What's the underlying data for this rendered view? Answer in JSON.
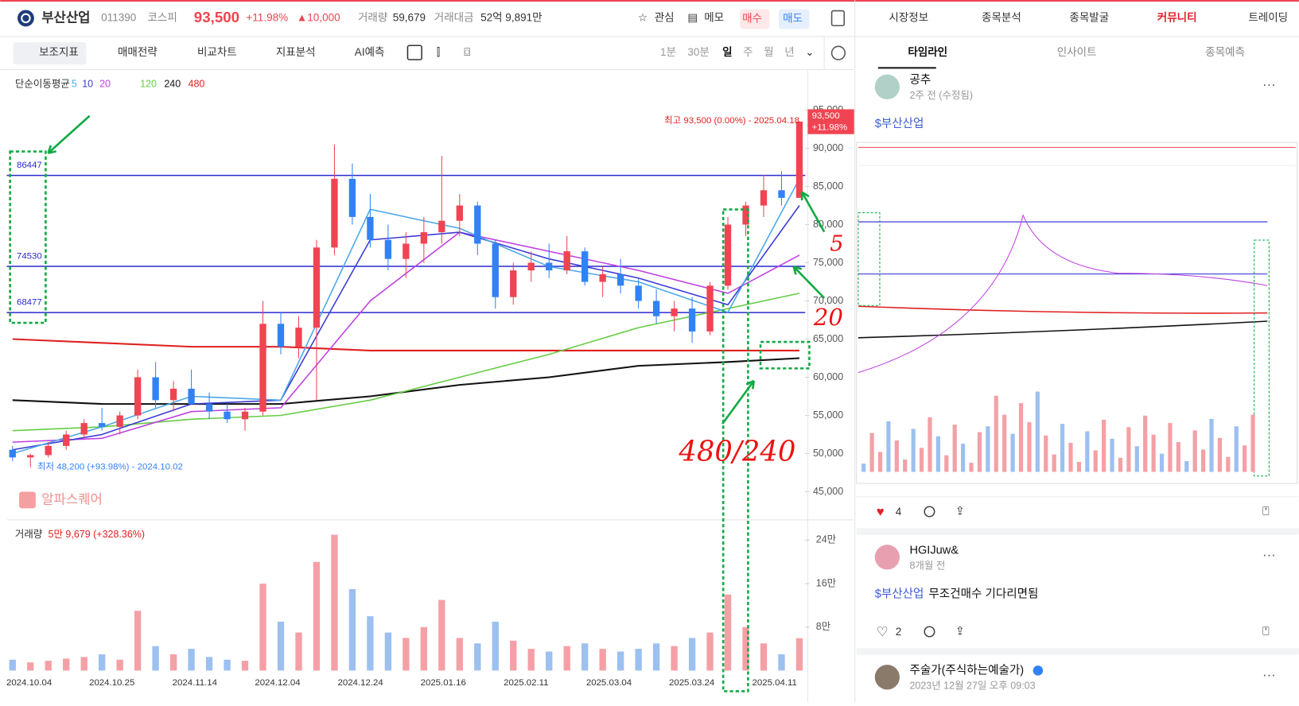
{
  "header": {
    "name": "부산산업",
    "code": "011390",
    "market": "코스피",
    "price": "93,500",
    "change_pct": "+11.98%",
    "change": "▲10,000",
    "volume_label": "거래량",
    "volume": "59,679",
    "amount_label": "거래대금",
    "amount": "52억 9,891만",
    "buttons": [
      "관심",
      "메모",
      "매수",
      "매도"
    ]
  },
  "nav": [
    "시장정보",
    "종목분석",
    "종목발굴",
    "커뮤니티",
    "트레이딩"
  ],
  "toolbar": [
    "보조지표",
    "매매전략",
    "비교차트",
    "지표분석",
    "AI예측"
  ],
  "periods": [
    "1분",
    "30분",
    "일",
    "주",
    "월",
    "년"
  ],
  "chart": {
    "type": "candlestick",
    "ma_label": "단순이동평균",
    "ohlc": [
      [
        50500,
        51000,
        49000,
        49500
      ],
      [
        49500,
        50000,
        48200,
        49800
      ],
      [
        49800,
        51500,
        49500,
        51000
      ],
      [
        51000,
        53000,
        50500,
        52500
      ],
      [
        52500,
        54500,
        52000,
        54000
      ],
      [
        54000,
        56000,
        53000,
        53500
      ],
      [
        53500,
        55500,
        52500,
        55000
      ],
      [
        55000,
        61000,
        54500,
        60000
      ],
      [
        60000,
        62000,
        56000,
        57000
      ],
      [
        57000,
        59500,
        55500,
        58500
      ],
      [
        58500,
        61000,
        57000,
        56500
      ],
      [
        56500,
        58000,
        54500,
        55500
      ],
      [
        55500,
        56500,
        54000,
        54500
      ],
      [
        54500,
        56000,
        53000,
        55500
      ],
      [
        55500,
        70000,
        55000,
        67000
      ],
      [
        67000,
        68500,
        63000,
        64000
      ],
      [
        64000,
        68000,
        62500,
        66500
      ],
      [
        66500,
        78000,
        57000,
        77000
      ],
      [
        77000,
        90500,
        76000,
        86000
      ],
      [
        86000,
        88000,
        80000,
        81000
      ],
      [
        81000,
        84000,
        77000,
        78000
      ],
      [
        78000,
        80000,
        74000,
        75500
      ],
      [
        75500,
        79000,
        73000,
        77500
      ],
      [
        77500,
        81000,
        75000,
        79000
      ],
      [
        79000,
        89000,
        77500,
        80500
      ],
      [
        80500,
        84000,
        78500,
        82500
      ],
      [
        82500,
        83000,
        76000,
        77500
      ],
      [
        77500,
        78000,
        69000,
        70500
      ],
      [
        70500,
        75000,
        69500,
        74000
      ],
      [
        74000,
        76500,
        72500,
        75000
      ],
      [
        75000,
        77500,
        73000,
        74000
      ],
      [
        74000,
        78500,
        73500,
        76500
      ],
      [
        76500,
        77000,
        72000,
        72500
      ],
      [
        72500,
        74500,
        70500,
        73500
      ],
      [
        73500,
        75500,
        71000,
        72000
      ],
      [
        72000,
        73000,
        69000,
        70000
      ],
      [
        70000,
        71500,
        67000,
        68000
      ],
      [
        68000,
        70000,
        66000,
        69000
      ],
      [
        69000,
        70500,
        64500,
        66000
      ],
      [
        66000,
        72500,
        65500,
        72000
      ],
      [
        72000,
        81000,
        71500,
        80000
      ],
      [
        80000,
        83000,
        78500,
        82500
      ],
      [
        82500,
        86500,
        81000,
        84500
      ],
      [
        84500,
        87000,
        82500,
        83500
      ],
      [
        83500,
        93500,
        83500,
        93500
      ]
    ],
    "up_color": "#f04452",
    "down_color": "#3182f6",
    "ma_index": [
      0,
      5,
      10,
      15,
      20,
      25,
      30,
      35,
      40,
      44
    ],
    "ma": [
      {
        "name": "5",
        "color": "#4aa8e8",
        "values": [
          50000,
          53500,
          57500,
          57000,
          82000,
          79500,
          74500,
          72500,
          68500,
          86000
        ]
      },
      {
        "name": "10",
        "color": "#3b3bd6",
        "values": [
          50500,
          52500,
          56500,
          57000,
          78000,
          79000,
          75500,
          73000,
          69500,
          82500
        ]
      },
      {
        "name": "20",
        "color": "#c040e0",
        "values": [
          51500,
          52000,
          55500,
          56000,
          70000,
          79000,
          76500,
          74000,
          71000,
          76000
        ]
      },
      {
        "name": "120",
        "color": "#66cc44",
        "values": [
          53000,
          53500,
          54500,
          55000,
          57000,
          60000,
          63000,
          66500,
          69000,
          71000
        ]
      },
      {
        "name": "240",
        "color": "#111111",
        "values": [
          57000,
          56500,
          56500,
          56500,
          57500,
          59000,
          60000,
          61500,
          62000,
          62500
        ]
      },
      {
        "name": "480",
        "color": "#e02020",
        "values": [
          65000,
          64500,
          64000,
          64000,
          63500,
          63500,
          63500,
          63500,
          63500,
          63500
        ]
      }
    ],
    "levels": [
      86447,
      74530,
      68477
    ],
    "level_color": "#2a2ad0",
    "ylim": [
      40000,
      97000
    ],
    "yticks": [
      {
        "value": 45000,
        "label": "45,000"
      },
      {
        "value": 50000,
        "label": "50,000"
      },
      {
        "value": 55000,
        "label": "55,000"
      },
      {
        "value": 60000,
        "label": "60,000"
      },
      {
        "value": 65000,
        "label": "65,000"
      },
      {
        "value": 70000,
        "label": "70,000"
      },
      {
        "value": 75000,
        "label": "75,000"
      },
      {
        "value": 80000,
        "label": "80,000"
      },
      {
        "value": 85000,
        "label": "85,000"
      },
      {
        "value": 90000,
        "label": "90,000"
      },
      {
        "value": 95000,
        "label": "95,000"
      }
    ],
    "high_note": "최고 93,500 (0.00%) - 2025.04.18",
    "low_note": "최저 48,200 (+93.98%) - 2024.10.02",
    "price_tag": "93,500",
    "price_tag_pct": "+11.98%",
    "watermark": "알파스퀘어",
    "volume_title": "거래량",
    "volume_note": "5만 9,679 (+328.36%)",
    "volume": [
      20000,
      15000,
      18000,
      22000,
      25000,
      30000,
      20000,
      110000,
      45000,
      30000,
      40000,
      25000,
      20000,
      18000,
      160000,
      90000,
      70000,
      200000,
      250000,
      150000,
      100000,
      70000,
      60000,
      80000,
      130000,
      60000,
      50000,
      90000,
      55000,
      40000,
      35000,
      45000,
      50000,
      40000,
      35000,
      40000,
      50000,
      45000,
      60000,
      70000,
      140000,
      80000,
      50000,
      30000,
      59679
    ],
    "vticks": [
      {
        "value": 80000,
        "label": "8만"
      },
      {
        "value": 160000,
        "label": "16만"
      },
      {
        "value": 240000,
        "label": "24만"
      }
    ],
    "x_labels": [
      "2024.10.04",
      "2024.10.25",
      "2024.11.14",
      "2024.12.04",
      "2024.12.24",
      "2025.01.16",
      "2025.02.11",
      "2025.03.04",
      "2025.03.24",
      "2025.04.11"
    ],
    "annotations": [
      "5",
      "20",
      "480/240"
    ]
  },
  "tabs": [
    "타임라인",
    "인사이트",
    "종목예측"
  ],
  "posts": [
    {
      "user": "공추",
      "time": "2주 전 (수정됨)",
      "tag": "$부산산업",
      "likes": "4"
    },
    {
      "user": "HGIJuw&",
      "time": "8개월 전",
      "tag": "$부산산업",
      "text": "무조건매수 기다리면됨",
      "likes": "2"
    },
    {
      "user": "주술가(주식하는예술가)",
      "time": "2023년 12월 27일 오후 09:03"
    }
  ]
}
